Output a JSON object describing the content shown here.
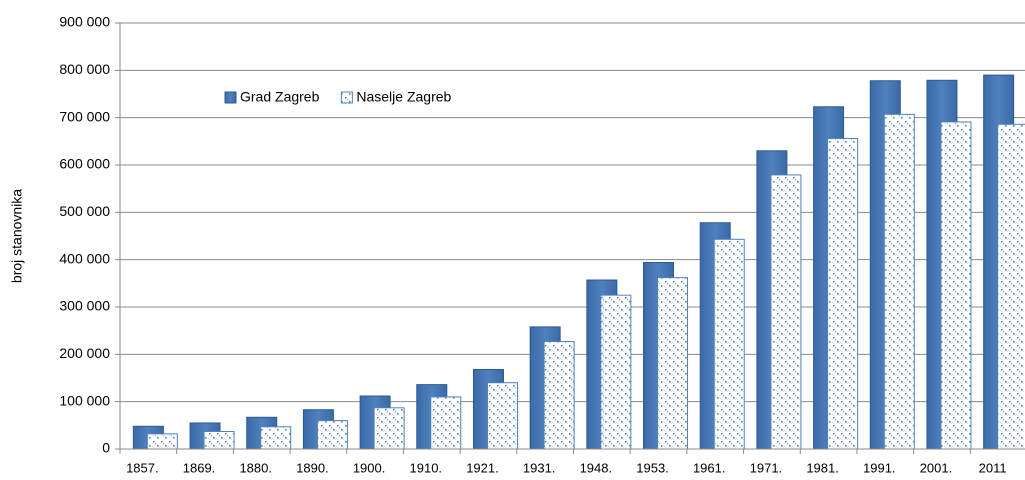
{
  "chart_data": {
    "type": "bar",
    "y_label": "broj stanovnika",
    "categories": [
      "1857.",
      "1869.",
      "1880.",
      "1890.",
      "1900.",
      "1910.",
      "1921.",
      "1931.",
      "1948.",
      "1953.",
      "1961.",
      "1971.",
      "1981.",
      "1991.",
      "2001.",
      "2011"
    ],
    "series": [
      {
        "name": "Grad Zagreb",
        "color": "#4f81bd",
        "pattern": "solid",
        "values": [
          48000,
          55000,
          67000,
          83000,
          112000,
          136000,
          168000,
          258000,
          357000,
          394000,
          478000,
          630000,
          723000,
          778000,
          779000,
          790000
        ]
      },
      {
        "name": "Naselje Zagreb",
        "color": "#4f81bd",
        "pattern": "dots",
        "values": [
          32000,
          37000,
          47000,
          60000,
          87000,
          110000,
          140000,
          227000,
          325000,
          362000,
          443000,
          579000,
          656000,
          707000,
          691000,
          686000
        ]
      }
    ],
    "ylim": [
      0,
      900000
    ],
    "yticks": [
      0,
      {
        "value": 100000,
        "label": "100 000"
      },
      {
        "value": 200000,
        "label": "200 000"
      },
      {
        "value": 300000,
        "label": "300 000"
      },
      {
        "value": 400000,
        "label": "400 000"
      },
      {
        "value": 500000,
        "label": "500 000"
      },
      {
        "value": 600000,
        "label": "600 000"
      },
      {
        "value": 700000,
        "label": "700 000"
      },
      {
        "value": 800000,
        "label": "800 000"
      },
      {
        "value": 900000,
        "label": "900 000"
      }
    ],
    "grid": true,
    "legend": "top-left"
  }
}
